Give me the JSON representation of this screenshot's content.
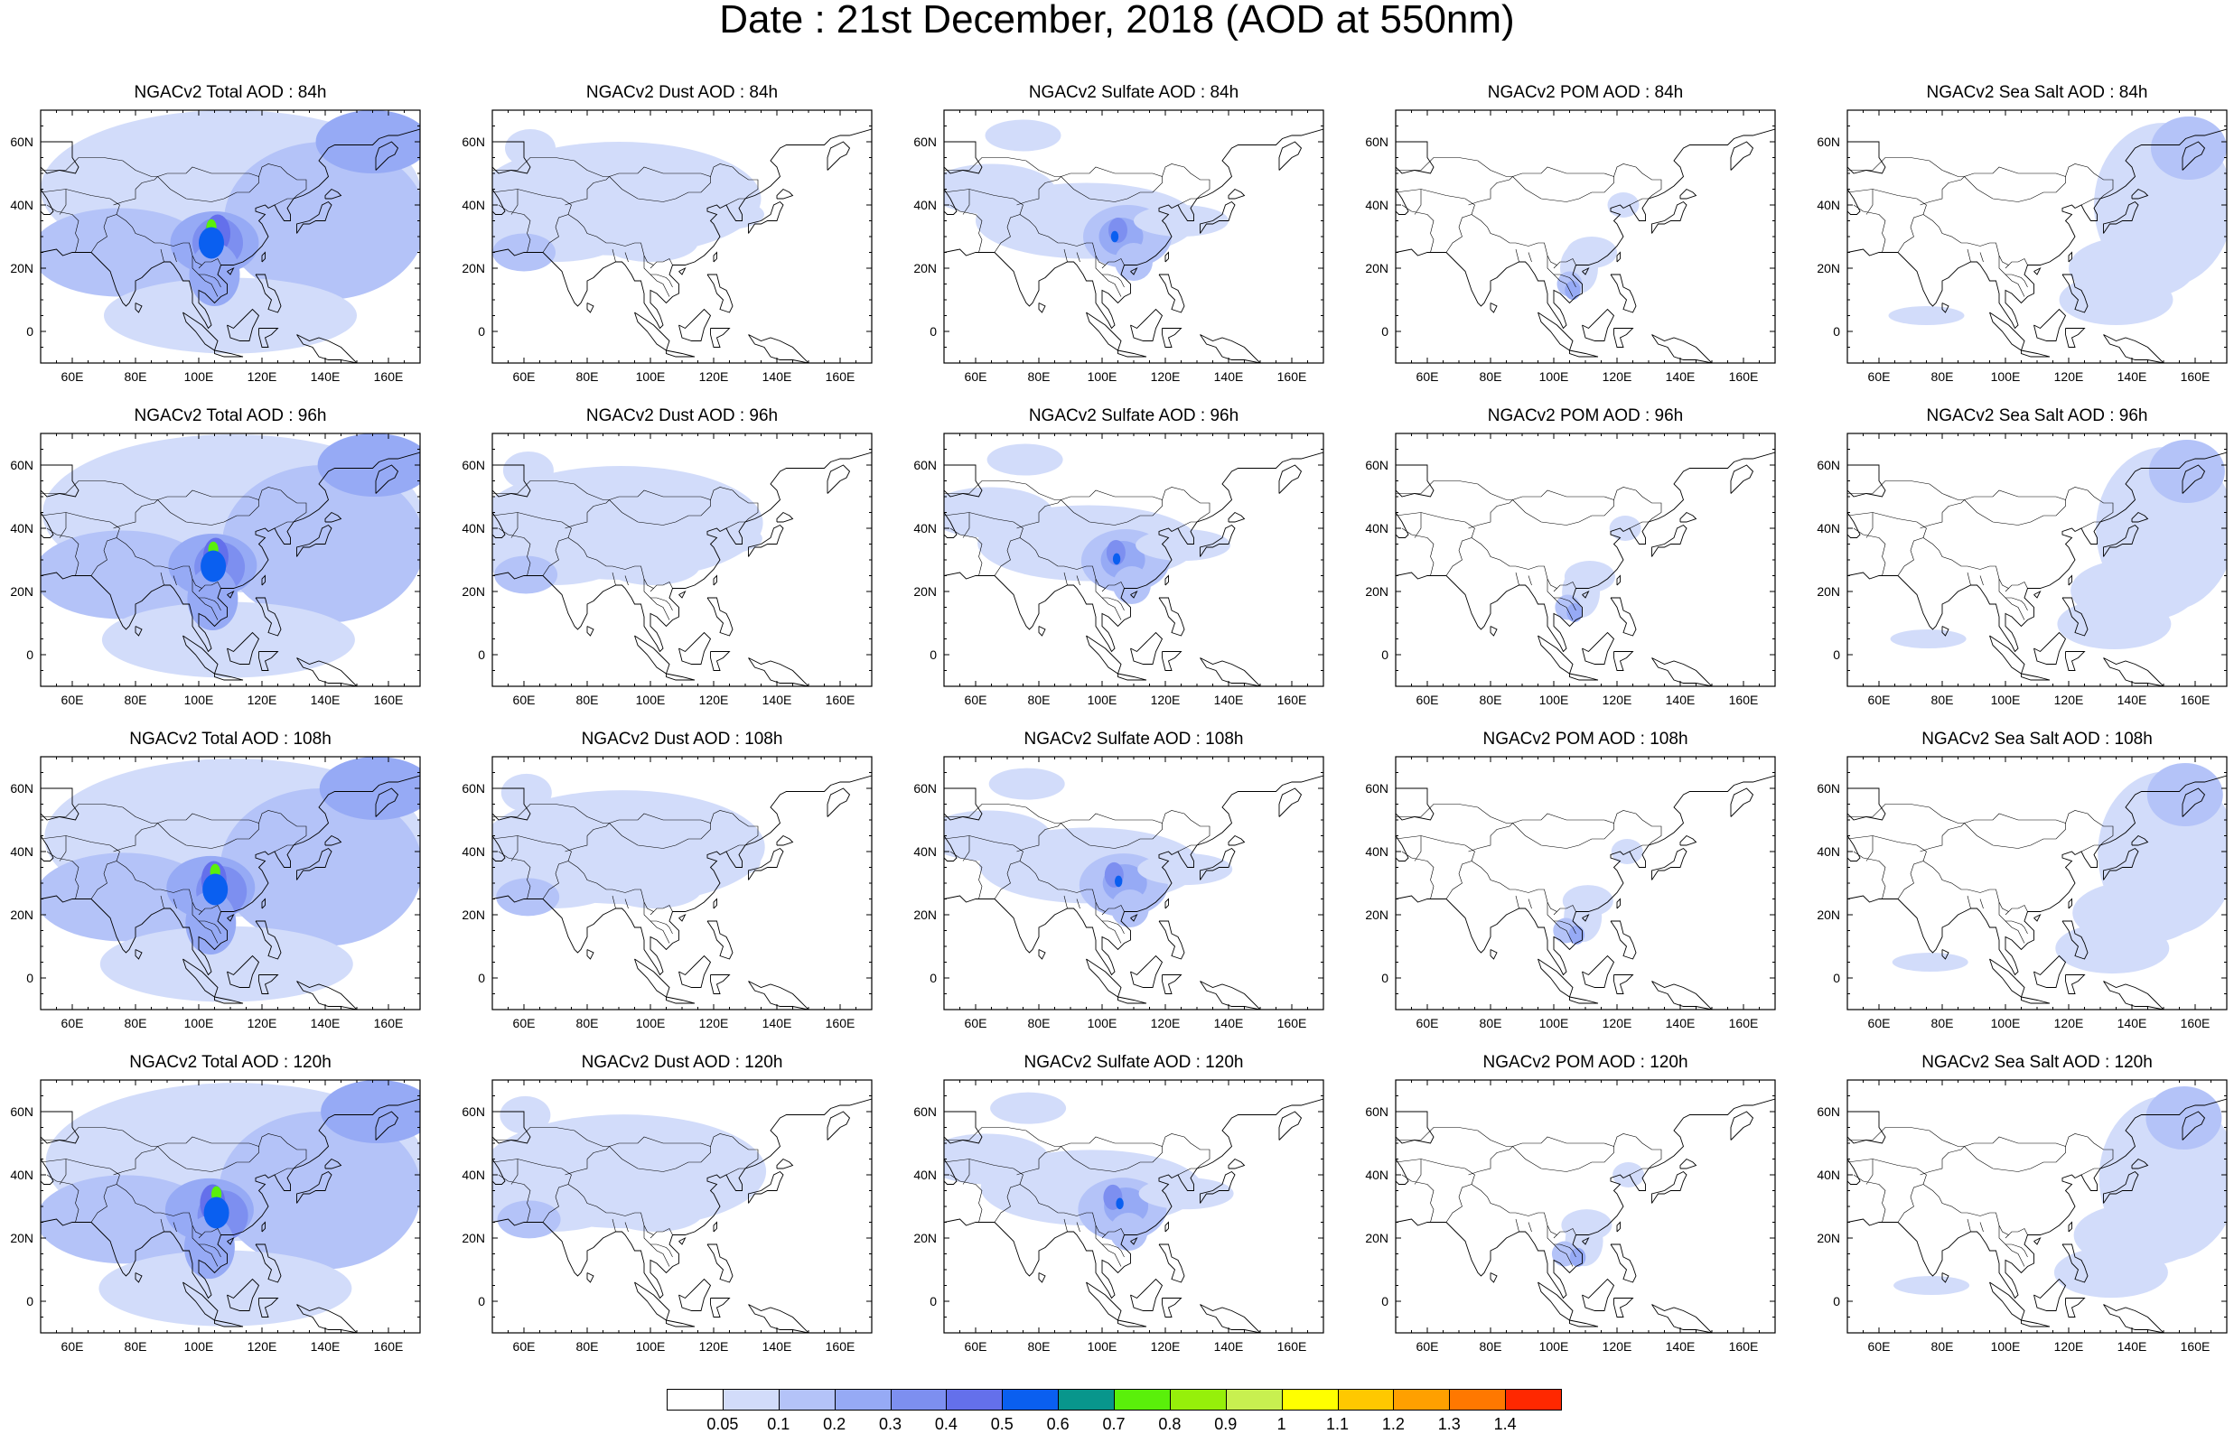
{
  "title": "Date : 21st December, 2018 (AOD at 550nm)",
  "rows": [
    "84h",
    "96h",
    "108h",
    "120h"
  ],
  "panels": [
    {
      "title": "NGACv2 Total AOD : 84h",
      "species": "total",
      "hour": "84h"
    },
    {
      "title": "NGACv2 Dust AOD : 84h",
      "species": "dust",
      "hour": "84h"
    },
    {
      "title": "NGACv2 Sulfate AOD : 84h",
      "species": "sulfate",
      "hour": "84h"
    },
    {
      "title": "NGACv2 POM AOD : 84h",
      "species": "pom",
      "hour": "84h"
    },
    {
      "title": "NGACv2 Sea Salt AOD : 84h",
      "species": "seasalt",
      "hour": "84h"
    },
    {
      "title": "NGACv2 Total AOD : 96h",
      "species": "total",
      "hour": "96h"
    },
    {
      "title": "NGACv2 Dust AOD : 96h",
      "species": "dust",
      "hour": "96h"
    },
    {
      "title": "NGACv2 Sulfate AOD : 96h",
      "species": "sulfate",
      "hour": "96h"
    },
    {
      "title": "NGACv2 POM AOD : 96h",
      "species": "pom",
      "hour": "96h"
    },
    {
      "title": "NGACv2 Sea Salt AOD : 96h",
      "species": "seasalt",
      "hour": "96h"
    },
    {
      "title": "NGACv2 Total AOD : 108h",
      "species": "total",
      "hour": "108h"
    },
    {
      "title": "NGACv2 Dust AOD : 108h",
      "species": "dust",
      "hour": "108h"
    },
    {
      "title": "NGACv2 Sulfate AOD : 108h",
      "species": "sulfate",
      "hour": "108h"
    },
    {
      "title": "NGACv2 POM AOD : 108h",
      "species": "pom",
      "hour": "108h"
    },
    {
      "title": "NGACv2 Sea Salt AOD : 108h",
      "species": "seasalt",
      "hour": "108h"
    },
    {
      "title": "NGACv2 Total AOD : 120h",
      "species": "total",
      "hour": "120h"
    },
    {
      "title": "NGACv2 Dust AOD : 120h",
      "species": "dust",
      "hour": "120h"
    },
    {
      "title": "NGACv2 Sulfate AOD : 120h",
      "species": "sulfate",
      "hour": "120h"
    },
    {
      "title": "NGACv2 POM AOD : 120h",
      "species": "pom",
      "hour": "120h"
    },
    {
      "title": "NGACv2 Sea Salt  AOD : 120h",
      "species": "seasalt",
      "hour": "120h"
    }
  ],
  "map_extent": {
    "lon": [
      50,
      170
    ],
    "lat": [
      -10,
      70
    ]
  },
  "lon_ticks": [
    "60E",
    "80E",
    "100E",
    "120E",
    "140E",
    "160E"
  ],
  "lat_ticks": [
    "60N",
    "40N",
    "20N",
    "0"
  ],
  "colorbar": {
    "labels": [
      "0.05",
      "0.1",
      "0.2",
      "0.3",
      "0.4",
      "0.5",
      "0.6",
      "0.7",
      "0.8",
      "0.9",
      "1",
      "1.1",
      "1.2",
      "1.3",
      "1.4"
    ],
    "colors": [
      "#ffffff",
      "#d2dcfa",
      "#b4c3f8",
      "#96aaf5",
      "#7d8ff0",
      "#6470eb",
      "#0a5ff0",
      "#08968c",
      "#5af00a",
      "#96f00a",
      "#c8f050",
      "#ffff00",
      "#ffc800",
      "#ffa000",
      "#ff7800",
      "#ff2800"
    ]
  }
}
